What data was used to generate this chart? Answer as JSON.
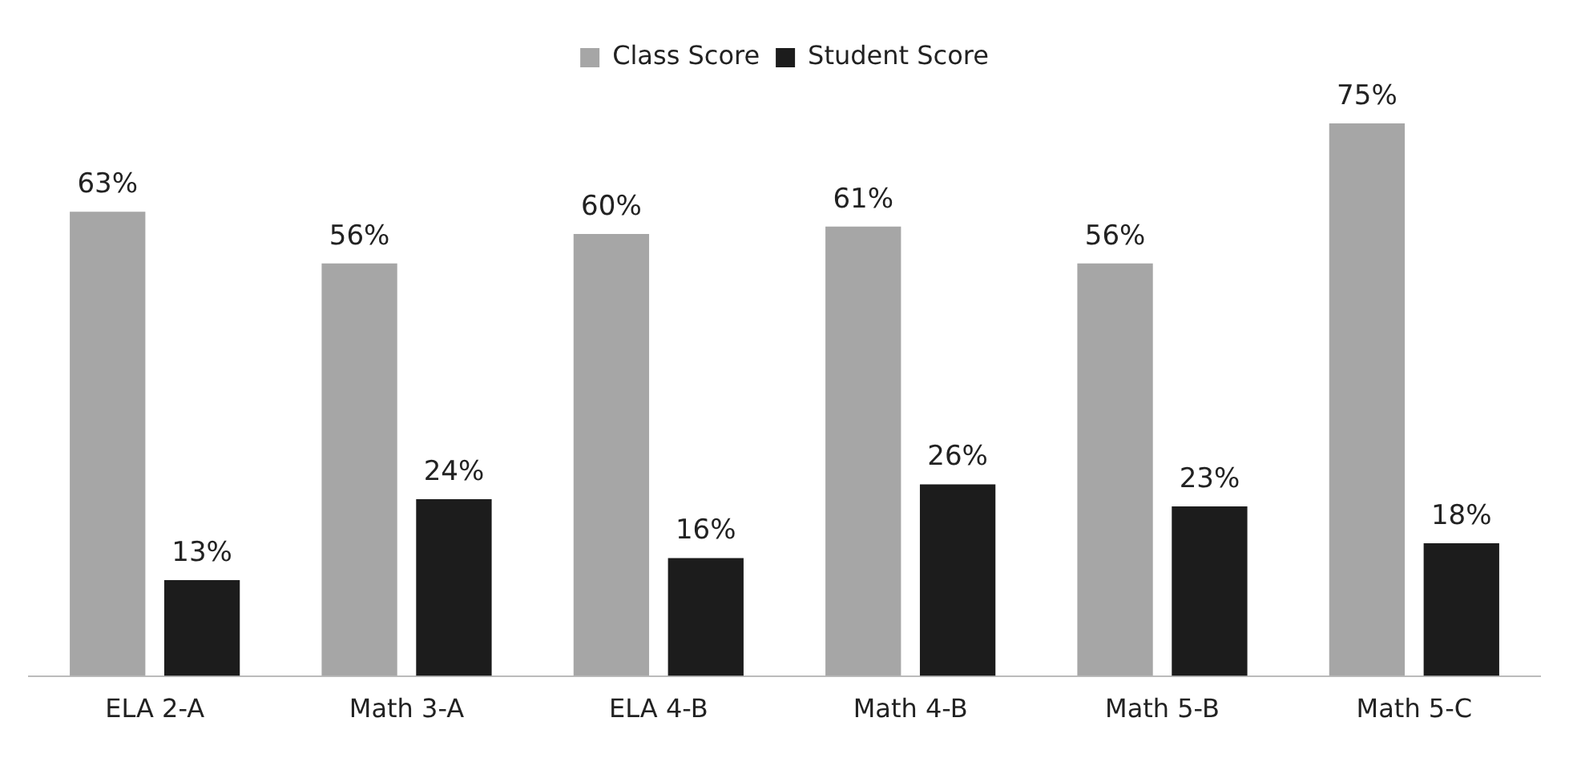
{
  "chart_data": {
    "type": "bar",
    "categories": [
      "ELA 2-A",
      "Math 3-A",
      "ELA 4-B",
      "Math 4-B",
      "Math 5-B",
      "Math 5-C"
    ],
    "series": [
      {
        "name": "Class Score",
        "color": "#a6a6a6",
        "values": [
          63,
          56,
          60,
          61,
          56,
          75
        ],
        "value_labels": [
          "63%",
          "56%",
          "60%",
          "61%",
          "56%",
          "75%"
        ]
      },
      {
        "name": "Student Score",
        "color": "#1c1c1c",
        "values": [
          13,
          24,
          16,
          26,
          23,
          18
        ],
        "value_labels": [
          "13%",
          "24%",
          "16%",
          "26%",
          "23%",
          "18%"
        ]
      }
    ],
    "legend": "top"
  }
}
